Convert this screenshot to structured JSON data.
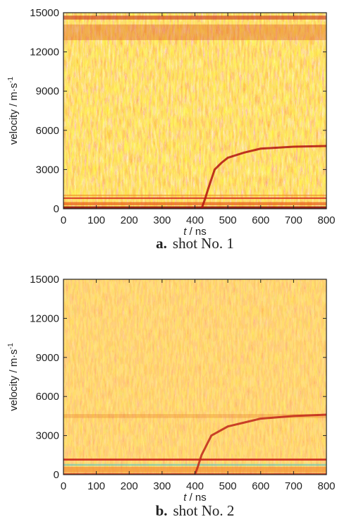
{
  "chart_data": [
    {
      "type": "line",
      "caption_label": "a.",
      "caption": "shot No. 1",
      "ylabel": "velocity / m·s",
      "ylabel_sup": "-1",
      "xlabel_var": "t",
      "xlabel_unit": " / ns",
      "xlim": [
        0,
        800
      ],
      "xticks": [
        0,
        100,
        200,
        300,
        400,
        500,
        600,
        700,
        800
      ],
      "ylim": [
        0,
        15000
      ],
      "yticks": [
        0,
        3000,
        6000,
        9000,
        12000,
        15000
      ],
      "x": [
        420,
        430,
        440,
        460,
        480,
        500,
        550,
        600,
        700,
        800
      ],
      "values": [
        0,
        700,
        1500,
        3000,
        3500,
        3900,
        4300,
        4600,
        4750,
        4800
      ],
      "color": "#b3140f"
    },
    {
      "type": "line",
      "caption_label": "b.",
      "caption": "shot No. 2",
      "ylabel": "velocity / m·s",
      "ylabel_sup": "-1",
      "xlabel_var": "t",
      "xlabel_unit": " / ns",
      "xlim": [
        0,
        800
      ],
      "xticks": [
        0,
        100,
        200,
        300,
        400,
        500,
        600,
        700,
        800
      ],
      "ylim": [
        0,
        15000
      ],
      "yticks": [
        0,
        3000,
        6000,
        9000,
        12000,
        15000
      ],
      "x": [
        400,
        410,
        420,
        450,
        500,
        550,
        600,
        700,
        800
      ],
      "values": [
        0,
        700,
        1500,
        3000,
        3700,
        4000,
        4300,
        4500,
        4600
      ],
      "color": "#c0261a"
    }
  ]
}
